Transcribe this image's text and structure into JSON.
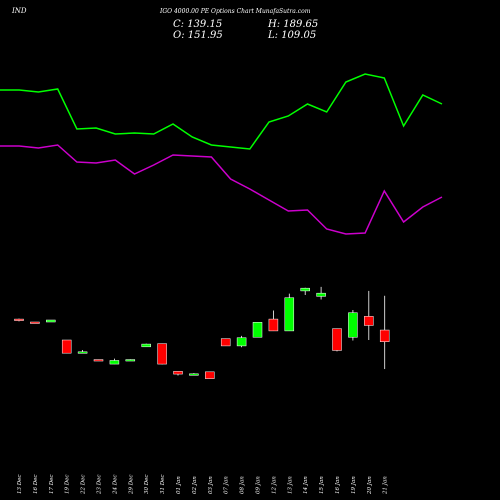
{
  "header": {
    "symbol": "IND",
    "title": "IGO 4000.00 PE Options  Chart MunafaSutra.com",
    "open_label": "O: 151.95",
    "high_label": "H: 189.65",
    "close_label": "C: 139.15",
    "low_label": "L: 109.05"
  },
  "colors": {
    "background": "#000000",
    "green_line": "#00ff00",
    "purple_line": "#cc00cc",
    "bull": "#00ff00",
    "bear": "#ff0000",
    "text": "#ffffff"
  },
  "chart_data": {
    "type": "candlestick",
    "dates": [
      "13 Dec",
      "16 Dec",
      "17 Dec",
      "19 Dec",
      "22 Dec",
      "23 Dec",
      "24 Dec",
      "29 Dec",
      "30 Dec",
      "31 Dec",
      "01 Jan",
      "02 Jan",
      "03 Jan",
      "07 Jan",
      "08 Jan",
      "09 Jan",
      "12 Jan",
      "13 Jan",
      "14 Jan",
      "15 Jan",
      "16 Jan",
      "19 Jan",
      "20 Jan",
      "21 Jan"
    ],
    "candles": [
      {
        "o": 164.0,
        "h": 164.5,
        "l": 161.5,
        "c": 162.5
      },
      {
        "o": 160.8,
        "h": 160.8,
        "l": 159.8,
        "c": 160.2
      },
      {
        "o": 160.8,
        "h": 163.0,
        "l": 160.8,
        "c": 163.0
      },
      {
        "o": 141.0,
        "h": 141.0,
        "l": 126.5,
        "c": 126.5
      },
      {
        "o": 127.0,
        "h": 130.0,
        "l": 126.5,
        "c": 128.0
      },
      {
        "o": 119.5,
        "h": 119.5,
        "l": 118.5,
        "c": 119.0
      },
      {
        "o": 114.5,
        "h": 120.5,
        "l": 114.5,
        "c": 118.5
      },
      {
        "o": 118.8,
        "h": 119.8,
        "l": 118.8,
        "c": 119.5
      },
      {
        "o": 133.5,
        "h": 137.0,
        "l": 133.5,
        "c": 136.5
      },
      {
        "o": 137.0,
        "h": 137.0,
        "l": 114.0,
        "c": 114.5
      },
      {
        "o": 106.5,
        "h": 106.5,
        "l": 102.0,
        "c": 103.5
      },
      {
        "o": 103.0,
        "h": 104.5,
        "l": 102.5,
        "c": 103.8
      },
      {
        "o": 106.0,
        "h": 106.0,
        "l": 98.5,
        "c": 98.5
      },
      {
        "o": 142.5,
        "h": 142.5,
        "l": 134.5,
        "c": 134.5
      },
      {
        "o": 134.5,
        "h": 145.5,
        "l": 133.0,
        "c": 143.5
      },
      {
        "o": 144.0,
        "h": 160.5,
        "l": 144.0,
        "c": 160.5
      },
      {
        "o": 164.0,
        "h": 173.5,
        "l": 151.0,
        "c": 151.0
      },
      {
        "o": 151.0,
        "h": 192.0,
        "l": 151.0,
        "c": 187.5
      },
      {
        "o": 195.0,
        "h": 198.5,
        "l": 190.5,
        "c": 198.0
      },
      {
        "o": 189.0,
        "h": 199.5,
        "l": 185.5,
        "c": 192.5
      },
      {
        "o": 153.5,
        "h": 153.5,
        "l": 128.5,
        "c": 129.5
      },
      {
        "o": 144.0,
        "h": 174.0,
        "l": 140.5,
        "c": 171.0
      },
      {
        "o": 167.0,
        "h": 195.0,
        "l": 141.0,
        "c": 157.0
      },
      {
        "o": 151.95,
        "h": 189.65,
        "l": 109.05,
        "c": 139.15
      }
    ],
    "indicator_top": [
      90,
      90,
      92,
      89,
      129,
      128,
      134,
      133,
      134,
      124,
      137,
      145,
      147,
      149,
      122,
      116,
      104,
      112,
      82,
      74,
      78,
      126,
      95,
      104
    ],
    "indicator_bottom": [
      146,
      146,
      148,
      145,
      162,
      163,
      160,
      174,
      165,
      155,
      156,
      157,
      179,
      189,
      200,
      211,
      210,
      229,
      234,
      233,
      191,
      222,
      207,
      197
    ],
    "y_axis": {
      "min": 75,
      "max": 240
    }
  }
}
